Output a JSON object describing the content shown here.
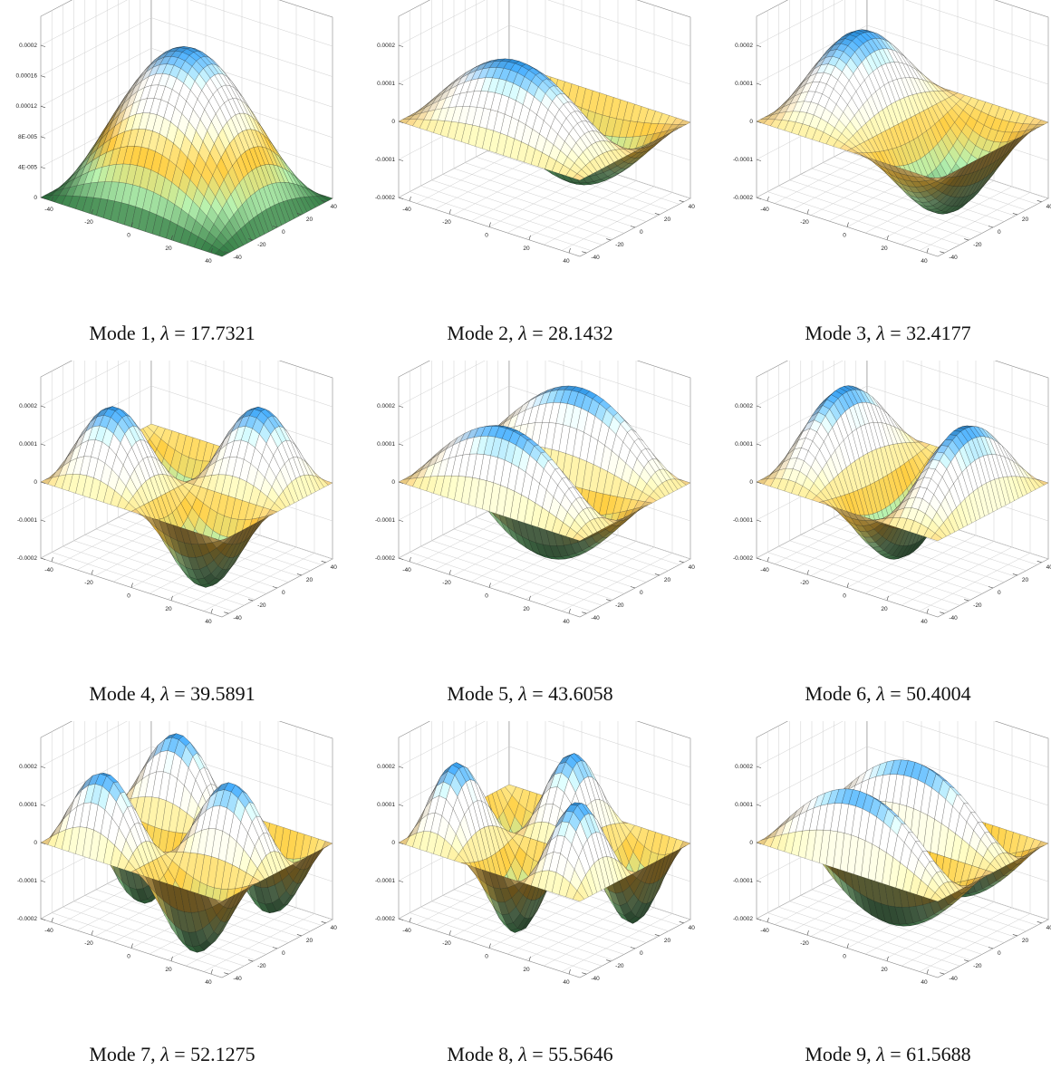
{
  "figure": {
    "panels": [
      {
        "caption_prefix": "Mode 1, ",
        "lambda_symbol": "λ",
        "caption_eq": " = ",
        "lambda": "17.7321"
      },
      {
        "caption_prefix": "Mode 2, ",
        "lambda_symbol": "λ",
        "caption_eq": " = ",
        "lambda": "28.1432"
      },
      {
        "caption_prefix": "Mode 3, ",
        "lambda_symbol": "λ",
        "caption_eq": " = ",
        "lambda": "32.4177"
      },
      {
        "caption_prefix": "Mode 4, ",
        "lambda_symbol": "λ",
        "caption_eq": " = ",
        "lambda": "39.5891"
      },
      {
        "caption_prefix": "Mode 5, ",
        "lambda_symbol": "λ",
        "caption_eq": " = ",
        "lambda": "43.6058"
      },
      {
        "caption_prefix": "Mode 6, ",
        "lambda_symbol": "λ",
        "caption_eq": " = ",
        "lambda": "50.4004"
      },
      {
        "caption_prefix": "Mode 7, ",
        "lambda_symbol": "λ",
        "caption_eq": " = ",
        "lambda": "52.1275"
      },
      {
        "caption_prefix": "Mode 8, ",
        "lambda_symbol": "λ",
        "caption_eq": " = ",
        "lambda": "55.5646"
      },
      {
        "caption_prefix": "Mode 9, ",
        "lambda_symbol": "λ",
        "caption_eq": " = ",
        "lambda": "61.5688"
      }
    ]
  },
  "chart_data": [
    {
      "type": "surface",
      "mode": 1,
      "lambda": 17.7321,
      "mx": 1,
      "ny": 1,
      "zticks": [
        "0",
        "4E-005",
        "8E-005",
        "0.00012",
        "0.00016",
        "0.0002"
      ],
      "zlim": [
        0,
        0.0002
      ],
      "xticks": [
        "-40",
        "-20",
        "0",
        "20",
        "40"
      ],
      "yticks": [
        "-40",
        "-20",
        "0",
        "20",
        "40"
      ],
      "colors": [
        "#2a6a3a",
        "#9fd39a",
        "#e8b43a",
        "#f4e6c8",
        "#ffffff",
        "#1d86d6"
      ]
    },
    {
      "type": "surface",
      "mode": 2,
      "lambda": 28.1432,
      "mx": 1,
      "ny": 2,
      "zticks": [
        "-0.0002",
        "-0.0001",
        "0",
        "0.0001",
        "0.0002"
      ],
      "zlim": [
        -0.0002,
        0.0002
      ],
      "xticks": [
        "-40",
        "-20",
        "0",
        "20",
        "40"
      ],
      "yticks": [
        "-40",
        "-20",
        "0",
        "20",
        "40"
      ],
      "colors": [
        "#2a6a3a",
        "#9fd39a",
        "#e8b43a",
        "#f4e6c8",
        "#ffffff",
        "#1d86d6"
      ]
    },
    {
      "type": "surface",
      "mode": 3,
      "lambda": 32.4177,
      "mx": 2,
      "ny": 1,
      "zticks": [
        "-0.0002",
        "-0.0001",
        "0",
        "0.0001",
        "0.0002"
      ],
      "zlim": [
        -0.0002,
        0.0002
      ],
      "xticks": [
        "-40",
        "-20",
        "0",
        "20",
        "40"
      ],
      "yticks": [
        "-40",
        "-20",
        "0",
        "20",
        "40"
      ],
      "colors": [
        "#2a6a3a",
        "#9fd39a",
        "#e8b43a",
        "#f4e6c8",
        "#ffffff",
        "#1d86d6"
      ]
    },
    {
      "type": "surface",
      "mode": 4,
      "lambda": 39.5891,
      "mx": 2,
      "ny": 2,
      "zticks": [
        "-0.0002",
        "-0.0001",
        "0",
        "0.0001",
        "0.0002"
      ],
      "zlim": [
        -0.0002,
        0.0002
      ],
      "xticks": [
        "-40",
        "-20",
        "0",
        "20",
        "40"
      ],
      "yticks": [
        "-40",
        "-20",
        "0",
        "20",
        "40"
      ],
      "colors": [
        "#2a6a3a",
        "#9fd39a",
        "#e8b43a",
        "#f4e6c8",
        "#ffffff",
        "#1d86d6"
      ]
    },
    {
      "type": "surface",
      "mode": 5,
      "lambda": 43.6058,
      "mx": 1,
      "ny": 3,
      "zticks": [
        "-0.0002",
        "-0.0001",
        "0",
        "0.0001",
        "0.0002"
      ],
      "zlim": [
        -0.0002,
        0.0002
      ],
      "xticks": [
        "-40",
        "-20",
        "0",
        "20",
        "40"
      ],
      "yticks": [
        "-40",
        "-20",
        "0",
        "20",
        "40"
      ],
      "colors": [
        "#2a6a3a",
        "#9fd39a",
        "#e8b43a",
        "#f4e6c8",
        "#ffffff",
        "#1d86d6"
      ]
    },
    {
      "type": "surface",
      "mode": 6,
      "lambda": 50.4004,
      "mx": 3,
      "ny": 1,
      "zticks": [
        "-0.0002",
        "-0.0001",
        "0",
        "0.0001",
        "0.0002"
      ],
      "zlim": [
        -0.0002,
        0.0002
      ],
      "xticks": [
        "-40",
        "-20",
        "0",
        "20",
        "40"
      ],
      "yticks": [
        "-40",
        "-20",
        "0",
        "20",
        "40"
      ],
      "colors": [
        "#2a6a3a",
        "#9fd39a",
        "#e8b43a",
        "#f4e6c8",
        "#ffffff",
        "#1d86d6"
      ]
    },
    {
      "type": "surface",
      "mode": 7,
      "lambda": 52.1275,
      "mx": 2,
      "ny": 3,
      "zticks": [
        "-0.0002",
        "-0.0001",
        "0",
        "0.0001",
        "0.0002"
      ],
      "zlim": [
        -0.0002,
        0.0002
      ],
      "xticks": [
        "-40",
        "-20",
        "0",
        "20",
        "40"
      ],
      "yticks": [
        "-40",
        "-20",
        "0",
        "20",
        "40"
      ],
      "colors": [
        "#2a6a3a",
        "#9fd39a",
        "#e8b43a",
        "#f4e6c8",
        "#ffffff",
        "#1d86d6"
      ]
    },
    {
      "type": "surface",
      "mode": 8,
      "lambda": 55.5646,
      "mx": 3,
      "ny": 2,
      "zticks": [
        "-0.0002",
        "-0.0001",
        "0",
        "0.0001",
        "0.0002"
      ],
      "zlim": [
        -0.0002,
        0.0002
      ],
      "xticks": [
        "-40",
        "-20",
        "0",
        "20",
        "40"
      ],
      "yticks": [
        "-40",
        "-20",
        "0",
        "20",
        "40"
      ],
      "colors": [
        "#2a6a3a",
        "#9fd39a",
        "#e8b43a",
        "#f4e6c8",
        "#ffffff",
        "#1d86d6"
      ]
    },
    {
      "type": "surface",
      "mode": 9,
      "lambda": 61.5688,
      "mx": 1,
      "ny": 4,
      "zticks": [
        "-0.0002",
        "-0.0001",
        "0",
        "0.0001",
        "0.0002"
      ],
      "zlim": [
        -0.0002,
        0.0002
      ],
      "xticks": [
        "-40",
        "-20",
        "0",
        "20",
        "40"
      ],
      "yticks": [
        "-40",
        "-20",
        "0",
        "20",
        "40"
      ],
      "colors": [
        "#2a6a3a",
        "#9fd39a",
        "#e8b43a",
        "#f4e6c8",
        "#ffffff",
        "#1d86d6"
      ]
    }
  ]
}
